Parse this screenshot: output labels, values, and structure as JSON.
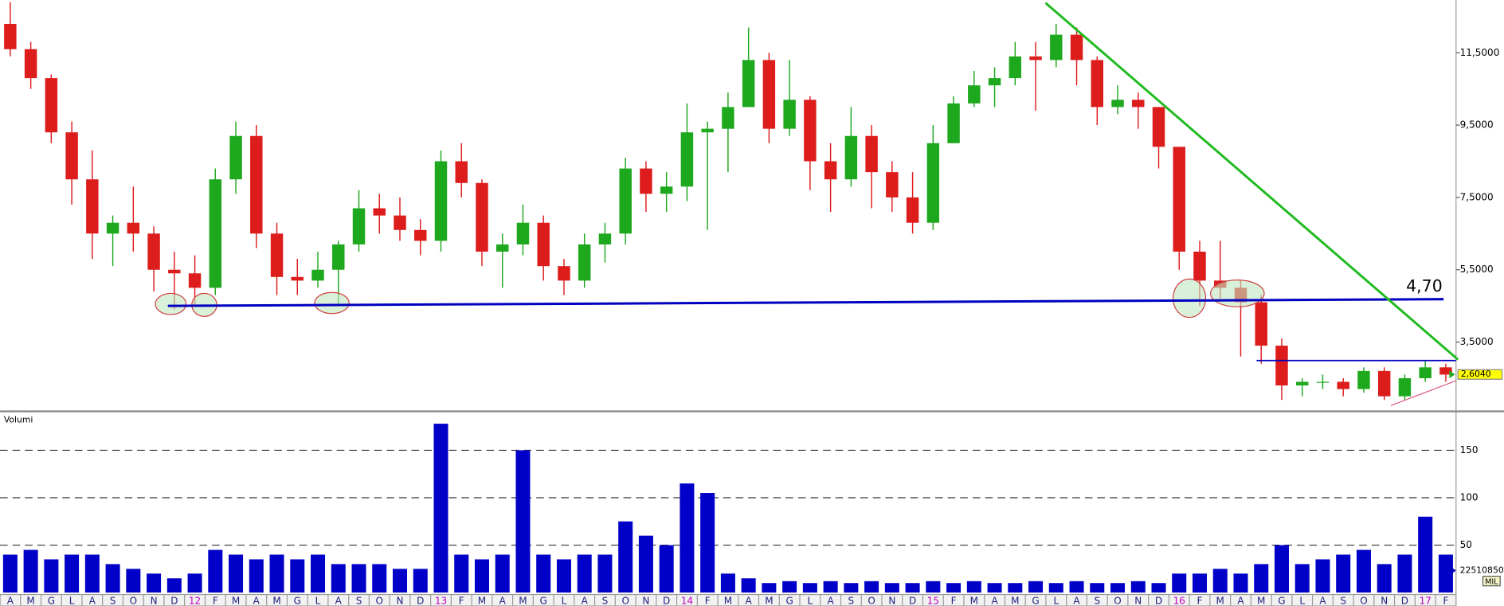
{
  "chart_data": [
    {
      "type": "candlestick",
      "categories": [
        "A",
        "M",
        "G",
        "L",
        "A",
        "S",
        "O",
        "N",
        "D",
        "12",
        "F",
        "M",
        "A",
        "M",
        "G",
        "L",
        "A",
        "S",
        "O",
        "N",
        "D",
        "13",
        "F",
        "M",
        "A",
        "M",
        "G",
        "L",
        "A",
        "S",
        "O",
        "N",
        "D",
        "14",
        "F",
        "M",
        "A",
        "M",
        "G",
        "L",
        "A",
        "S",
        "O",
        "N",
        "D",
        "15",
        "F",
        "M",
        "A",
        "M",
        "G",
        "L",
        "A",
        "S",
        "O",
        "N",
        "D",
        "16",
        "F",
        "M",
        "A",
        "M",
        "G",
        "L",
        "A",
        "S",
        "O",
        "N",
        "D",
        "17",
        "F"
      ],
      "open": [
        12.3,
        11.6,
        10.8,
        9.3,
        8.0,
        6.5,
        6.8,
        6.5,
        5.5,
        5.4,
        5.0,
        8.0,
        9.2,
        6.5,
        5.3,
        5.2,
        5.5,
        6.2,
        7.2,
        7.0,
        6.6,
        6.3,
        8.5,
        7.9,
        6.0,
        6.2,
        6.8,
        5.6,
        5.2,
        6.2,
        6.5,
        8.3,
        7.6,
        7.8,
        9.3,
        9.4,
        10.0,
        11.3,
        9.4,
        10.2,
        8.5,
        8.0,
        9.2,
        8.2,
        7.5,
        6.8,
        9.0,
        10.1,
        10.6,
        10.8,
        11.4,
        11.3,
        12.0,
        11.3,
        10.0,
        10.2,
        10.0,
        8.9,
        6.0,
        5.2,
        5.0,
        4.6,
        3.4,
        2.3,
        2.4,
        2.4,
        2.2,
        2.7,
        2.0,
        2.5,
        2.8
      ],
      "high": [
        12.9,
        11.8,
        10.9,
        9.6,
        8.8,
        7.0,
        7.8,
        6.7,
        6.0,
        5.9,
        8.3,
        9.6,
        9.5,
        6.8,
        5.8,
        6.0,
        6.3,
        7.7,
        7.6,
        7.5,
        6.9,
        8.8,
        9.0,
        8.0,
        6.5,
        7.3,
        7.0,
        5.8,
        6.5,
        6.8,
        8.6,
        8.5,
        8.2,
        10.1,
        9.6,
        10.4,
        12.2,
        11.5,
        11.3,
        10.3,
        9.0,
        10.0,
        9.5,
        8.5,
        8.2,
        9.5,
        10.3,
        11.0,
        11.1,
        11.8,
        11.8,
        12.3,
        12.2,
        11.4,
        10.6,
        10.4,
        10.0,
        8.9,
        6.3,
        6.3,
        5.2,
        4.8,
        3.6,
        2.5,
        2.6,
        2.5,
        2.8,
        2.8,
        2.6,
        3.0,
        2.9
      ],
      "low": [
        11.4,
        10.5,
        9.0,
        7.3,
        5.8,
        5.6,
        6.0,
        4.9,
        4.4,
        4.5,
        4.8,
        7.6,
        6.1,
        4.8,
        4.8,
        5.0,
        4.5,
        6.0,
        6.5,
        6.3,
        5.9,
        6.0,
        7.5,
        5.6,
        5.0,
        5.9,
        5.2,
        4.8,
        5.0,
        5.7,
        6.2,
        7.1,
        7.1,
        7.4,
        6.6,
        8.2,
        10.0,
        9.0,
        9.2,
        7.7,
        7.1,
        7.8,
        7.2,
        7.1,
        6.5,
        6.6,
        9.0,
        10.0,
        10.0,
        10.6,
        9.9,
        11.1,
        10.6,
        9.5,
        9.8,
        9.4,
        8.3,
        5.5,
        4.5,
        4.7,
        3.1,
        2.9,
        1.9,
        2.0,
        2.2,
        2.0,
        2.1,
        1.9,
        1.9,
        2.4,
        2.4
      ],
      "close": [
        11.6,
        10.8,
        9.3,
        8.0,
        6.5,
        6.8,
        6.5,
        5.5,
        5.4,
        5.0,
        8.0,
        9.2,
        6.5,
        5.3,
        5.2,
        5.5,
        6.2,
        7.2,
        7.0,
        6.6,
        6.3,
        8.5,
        7.9,
        6.0,
        6.2,
        6.8,
        5.6,
        5.2,
        6.2,
        6.5,
        8.3,
        7.6,
        7.8,
        9.3,
        9.4,
        10.0,
        11.3,
        9.4,
        10.2,
        8.5,
        8.0,
        9.2,
        8.2,
        7.5,
        6.8,
        9.0,
        10.1,
        10.6,
        10.8,
        11.4,
        11.3,
        12.0,
        11.3,
        10.0,
        10.2,
        10.0,
        8.9,
        6.0,
        5.2,
        5.0,
        4.6,
        3.4,
        2.3,
        2.4,
        2.4,
        2.2,
        2.7,
        2.0,
        2.5,
        2.8,
        2.6
      ],
      "up_color": "#1ea81e",
      "down_color": "#dd1c1c",
      "ylim": [
        1.61,
        12.96
      ],
      "yticks": [
        {
          "value": 3.5,
          "label": "3,5000"
        },
        {
          "value": 5.5,
          "label": "5,5000"
        },
        {
          "value": 7.5,
          "label": "7,5000"
        },
        {
          "value": 9.5,
          "label": "9,5000"
        },
        {
          "value": 11.5,
          "label": "11,5000"
        }
      ],
      "last_price": {
        "value": 2.604,
        "label": "2,6040"
      },
      "annotation": "4,70"
    },
    {
      "type": "bar",
      "title": "Volumi",
      "values": [
        40,
        45,
        35,
        40,
        40,
        30,
        25,
        20,
        15,
        20,
        45,
        40,
        35,
        40,
        35,
        40,
        30,
        30,
        30,
        25,
        25,
        178,
        40,
        35,
        40,
        150,
        40,
        35,
        40,
        40,
        75,
        60,
        50,
        115,
        105,
        20,
        15,
        10,
        12,
        10,
        12,
        10,
        12,
        10,
        10,
        12,
        10,
        12,
        10,
        10,
        12,
        10,
        12,
        10,
        10,
        12,
        10,
        20,
        20,
        25,
        20,
        30,
        50,
        30,
        35,
        40,
        45,
        30,
        40,
        80,
        40
      ],
      "color": "#0000c8",
      "ylim": [
        0,
        188
      ],
      "yticks": [
        50,
        100,
        150
      ],
      "grid": true,
      "last_volume": "22510850",
      "unit": "MIL"
    }
  ]
}
